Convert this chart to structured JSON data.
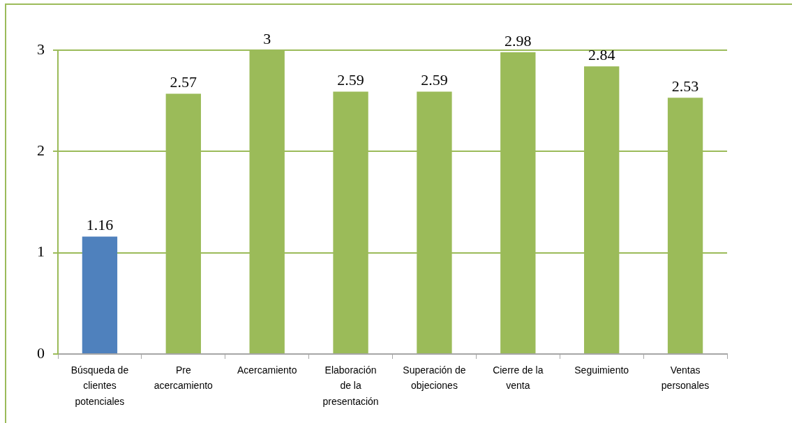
{
  "chart_data": {
    "type": "bar",
    "categories": [
      "Búsqueda de clientes potenciales",
      "Pre acercamiento",
      "Acercamiento",
      "Elaboración de la presentación",
      "Superación de objeciones",
      "Cierre de la venta",
      "Seguimiento",
      "Ventas personales"
    ],
    "values": [
      1.16,
      2.57,
      3,
      2.59,
      2.59,
      2.98,
      2.84,
      2.53
    ],
    "colors": [
      "#4f81bd",
      "#9bbb59",
      "#9bbb59",
      "#9bbb59",
      "#9bbb59",
      "#9bbb59",
      "#9bbb59",
      "#9bbb59"
    ],
    "ylim": [
      0,
      3
    ],
    "yticks": [
      0,
      1,
      2,
      3
    ],
    "grid": "y",
    "data_labels": true
  }
}
